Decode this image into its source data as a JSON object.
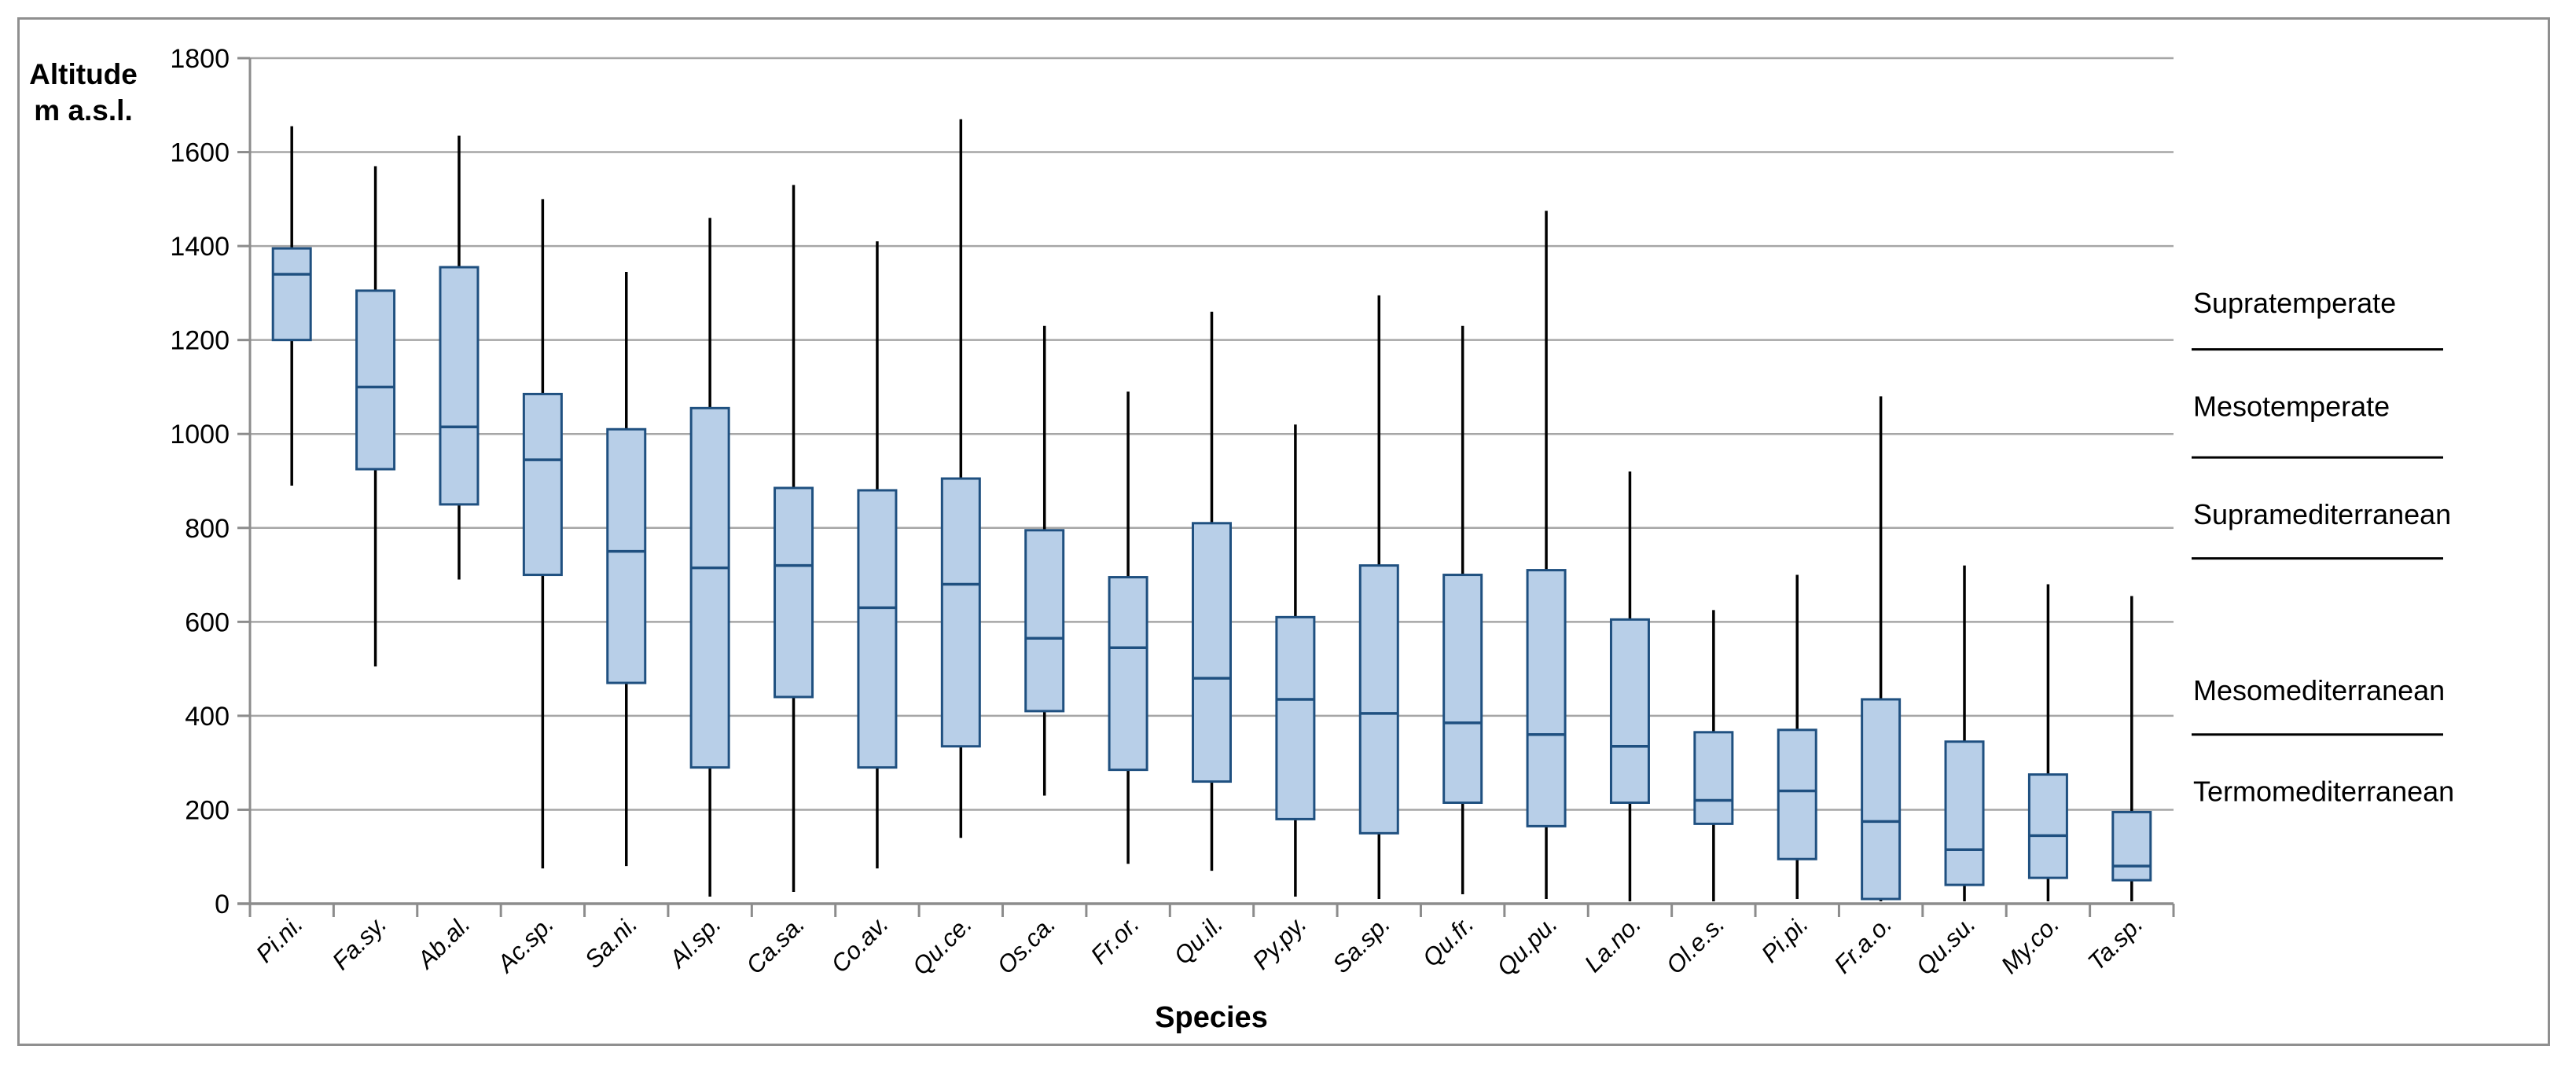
{
  "chart_data": {
    "type": "boxplot",
    "title": "",
    "y_axis_title_line1": "Altitude",
    "y_axis_title_line2": "m a.s.l.",
    "xlabel": "Species",
    "ylabel": "Altitude m a.s.l.",
    "ylim": [
      0,
      1800
    ],
    "ytick_step": 200,
    "grid": true,
    "legend": "none",
    "categories": [
      "Pi.ni.",
      "Fa.sy.",
      "Ab.al.",
      "Ac.sp.",
      "Sa.ni.",
      "Al.sp.",
      "Ca.sa.",
      "Co.av.",
      "Qu.ce.",
      "Os.ca.",
      "Fr.or.",
      "Qu.il.",
      "Py.py.",
      "Sa.sp.",
      "Qu.fr.",
      "Qu.pu.",
      "La.no.",
      "Ol.e.s.",
      "Pi.pi.",
      "Fr.a.o.",
      "Qu.su.",
      "My.co.",
      "Ta.sp."
    ],
    "boxes": [
      {
        "species": "Pi.ni.",
        "min": 890,
        "q1": 1200,
        "median": 1340,
        "q3": 1395,
        "max": 1655
      },
      {
        "species": "Fa.sy.",
        "min": 505,
        "q1": 925,
        "median": 1100,
        "q3": 1305,
        "max": 1570
      },
      {
        "species": "Ab.al.",
        "min": 690,
        "q1": 850,
        "median": 1015,
        "q3": 1355,
        "max": 1635
      },
      {
        "species": "Ac.sp.",
        "min": 75,
        "q1": 700,
        "median": 945,
        "q3": 1085,
        "max": 1500
      },
      {
        "species": "Sa.ni.",
        "min": 80,
        "q1": 470,
        "median": 750,
        "q3": 1010,
        "max": 1345
      },
      {
        "species": "Al.sp.",
        "min": 15,
        "q1": 290,
        "median": 715,
        "q3": 1055,
        "max": 1460
      },
      {
        "species": "Ca.sa.",
        "min": 25,
        "q1": 440,
        "median": 720,
        "q3": 885,
        "max": 1530
      },
      {
        "species": "Co.av.",
        "min": 75,
        "q1": 290,
        "median": 630,
        "q3": 880,
        "max": 1410
      },
      {
        "species": "Qu.ce.",
        "min": 140,
        "q1": 335,
        "median": 680,
        "q3": 905,
        "max": 1670
      },
      {
        "species": "Os.ca.",
        "min": 230,
        "q1": 410,
        "median": 565,
        "q3": 795,
        "max": 1230
      },
      {
        "species": "Fr.or.",
        "min": 85,
        "q1": 285,
        "median": 545,
        "q3": 695,
        "max": 1090
      },
      {
        "species": "Qu.il.",
        "min": 70,
        "q1": 260,
        "median": 480,
        "q3": 810,
        "max": 1260
      },
      {
        "species": "Py.py.",
        "min": 15,
        "q1": 180,
        "median": 435,
        "q3": 610,
        "max": 1020
      },
      {
        "species": "Sa.sp.",
        "min": 10,
        "q1": 150,
        "median": 405,
        "q3": 720,
        "max": 1295
      },
      {
        "species": "Qu.fr.",
        "min": 20,
        "q1": 215,
        "median": 385,
        "q3": 700,
        "max": 1230
      },
      {
        "species": "Qu.pu.",
        "min": 10,
        "q1": 165,
        "median": 360,
        "q3": 710,
        "max": 1475
      },
      {
        "species": "La.no.",
        "min": 5,
        "q1": 215,
        "median": 335,
        "q3": 605,
        "max": 920
      },
      {
        "species": "Ol.e.s.",
        "min": 5,
        "q1": 170,
        "median": 220,
        "q3": 365,
        "max": 625
      },
      {
        "species": "Pi.pi.",
        "min": 10,
        "q1": 95,
        "median": 240,
        "q3": 370,
        "max": 700
      },
      {
        "species": "Fr.a.o.",
        "min": 5,
        "q1": 10,
        "median": 175,
        "q3": 435,
        "max": 1080
      },
      {
        "species": "Qu.su.",
        "min": 5,
        "q1": 40,
        "median": 115,
        "q3": 345,
        "max": 720
      },
      {
        "species": "My.co.",
        "min": 5,
        "q1": 55,
        "median": 145,
        "q3": 275,
        "max": 680
      },
      {
        "species": "Ta.sp.",
        "min": 5,
        "q1": 50,
        "median": 80,
        "q3": 195,
        "max": 655
      }
    ],
    "zones": [
      {
        "label": "Supratemperate",
        "label_center": 1280,
        "boundary_below": 1180
      },
      {
        "label": "Mesotemperate",
        "label_center": 1060,
        "boundary_below": 950
      },
      {
        "label": "Supramediterranean",
        "label_center": 830,
        "boundary_below": 735
      },
      {
        "label": "Mesomediterranean",
        "label_center": 455,
        "boundary_below": 360
      },
      {
        "label": "Termomediterranean",
        "label_center": 240,
        "boundary_below": null
      }
    ],
    "colors": {
      "box_fill": "#b8cfe8",
      "box_border": "#1f5080",
      "median": "#1f5080",
      "whisker": "#000000",
      "gridline": "#a6a6a6",
      "axis": "#8c8c8c",
      "frame": "#8f8f8f",
      "text": "#000000"
    }
  }
}
